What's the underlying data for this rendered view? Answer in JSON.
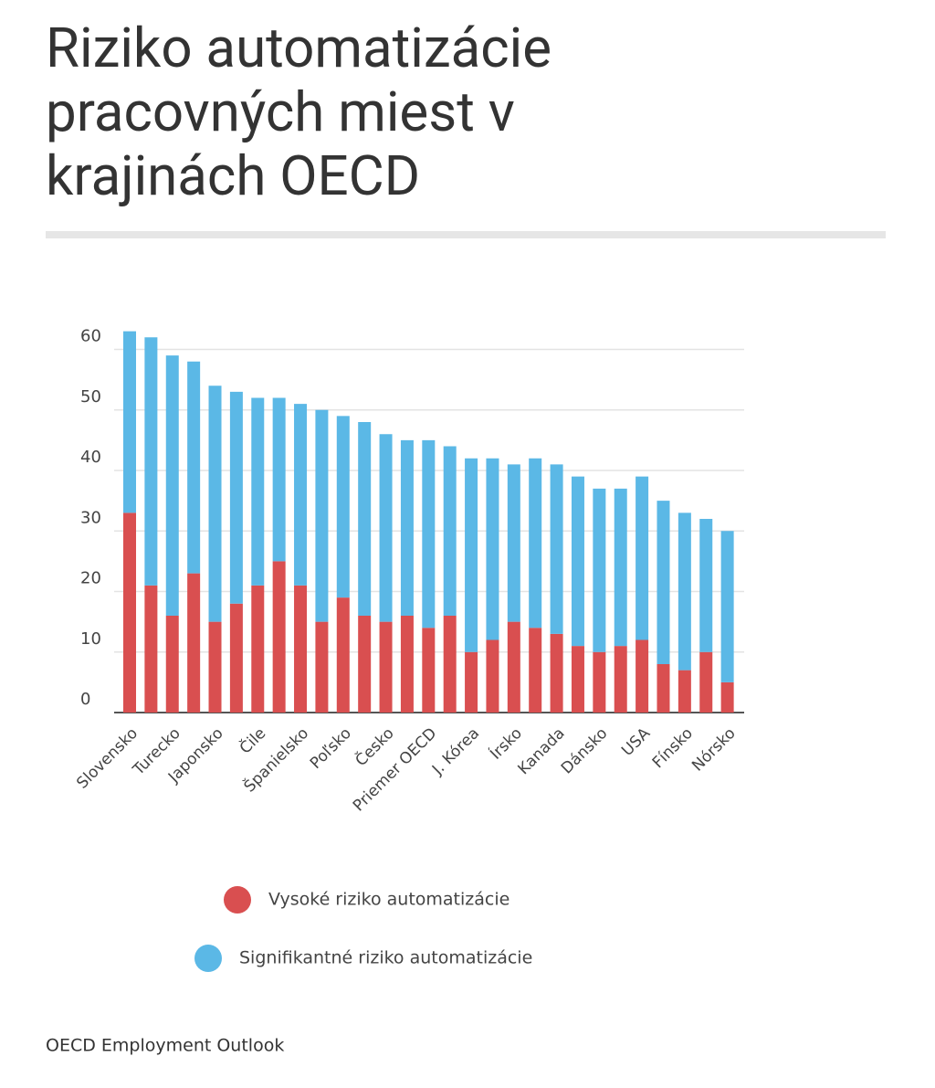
{
  "chart_data": {
    "type": "stacked_bar",
    "title": "Riziko automatizácie pracovných miest v krajinách OECD",
    "source": "OECD Employment Outlook",
    "categories": [
      "Slovensko",
      null,
      "Turecko",
      null,
      "Japonsko",
      null,
      "Čile",
      null,
      "Španielsko",
      null,
      "Poľsko",
      null,
      "Česko",
      null,
      "Priemer OECD",
      null,
      "J. Kórea",
      null,
      "Írsko",
      null,
      "Kanada",
      null,
      "Dánsko",
      null,
      "USA",
      null,
      "Fínsko",
      null,
      "Nórsko"
    ],
    "series": [
      {
        "name": "Vysoké riziko automatizácie",
        "color": "#d94f50",
        "values": [
          33,
          21,
          16,
          23,
          15,
          18,
          21,
          25,
          21,
          15,
          19,
          16,
          15,
          16,
          14,
          16,
          10,
          12,
          15,
          14,
          13,
          11,
          10,
          11,
          12,
          8,
          7,
          10,
          5
        ]
      },
      {
        "name": "Signifikantné riziko automatizácie",
        "color": "#5bb8e6",
        "values": [
          30,
          41,
          43,
          35,
          39,
          35,
          31,
          27,
          30,
          35,
          30,
          32,
          31,
          29,
          31,
          28,
          32,
          30,
          26,
          28,
          28,
          28,
          27,
          26,
          27,
          27,
          26,
          22,
          25
        ]
      }
    ],
    "ylim": [
      0,
      64
    ],
    "yticks": [
      0,
      10,
      20,
      30,
      40,
      50,
      60
    ],
    "grid": true
  }
}
